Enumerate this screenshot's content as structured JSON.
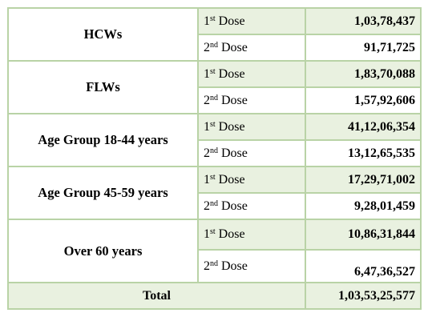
{
  "groups": [
    {
      "name": "HCWs",
      "doses": [
        {
          "ord": "1",
          "sup": "st",
          "label": "Dose",
          "count": "1,03,78,437"
        },
        {
          "ord": "2",
          "sup": "nd",
          "label": "Dose",
          "count": "91,71,725"
        }
      ]
    },
    {
      "name": "FLWs",
      "doses": [
        {
          "ord": "1",
          "sup": "st",
          "label": "Dose",
          "count": "1,83,70,088"
        },
        {
          "ord": "2",
          "sup": "nd",
          "label": "Dose",
          "count": "1,57,92,606"
        }
      ]
    },
    {
      "name": "Age Group 18-44 years",
      "doses": [
        {
          "ord": "1",
          "sup": "st",
          "label": "Dose",
          "count": "41,12,06,354"
        },
        {
          "ord": "2",
          "sup": "nd",
          "label": "Dose",
          "count": "13,12,65,535"
        }
      ]
    },
    {
      "name": "Age Group 45-59 years",
      "doses": [
        {
          "ord": "1",
          "sup": "st",
          "label": "Dose",
          "count": "17,29,71,002"
        },
        {
          "ord": "2",
          "sup": "nd",
          "label": "Dose",
          "count": "9,28,01,459"
        }
      ]
    },
    {
      "name": "Over 60 years",
      "doses": [
        {
          "ord": "1",
          "sup": "st",
          "label": "Dose",
          "count": "10,86,31,844"
        },
        {
          "ord": "2",
          "sup": "nd",
          "label": "Dose",
          "count": "6,47,36,527"
        }
      ]
    }
  ],
  "total": {
    "label": "Total",
    "value": "1,03,53,25,577"
  }
}
